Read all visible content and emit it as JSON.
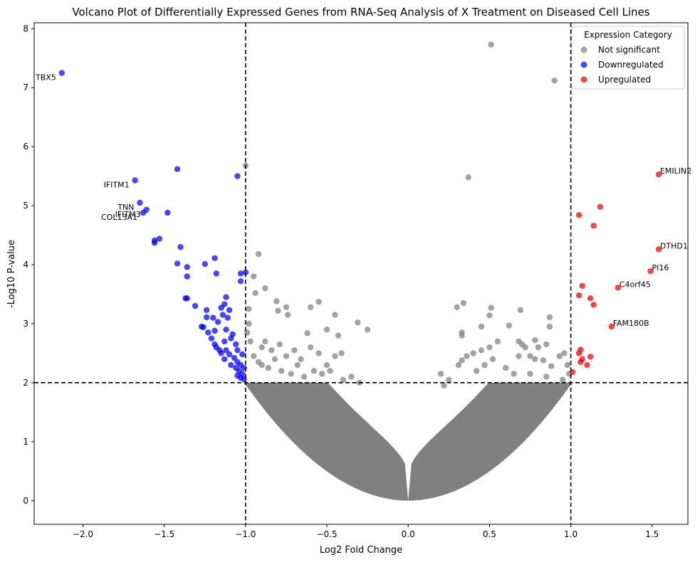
{
  "chart_data": {
    "type": "scatter",
    "title": "Volcano Plot of Differentially Expressed Genes from RNA-Seq Analysis of X Treatment on Diseased Cell Lines",
    "xlabel": "Log2 Fold Change",
    "ylabel": "-Log10 P-value",
    "xlim": [
      -2.3,
      1.72
    ],
    "ylim": [
      -0.4,
      8.1
    ],
    "xticks": [
      -2.0,
      -1.5,
      -1.0,
      -0.5,
      0.0,
      0.5,
      1.0,
      1.5
    ],
    "xtick_labels": [
      "−2.0",
      "−1.5",
      "−1.0",
      "−0.5",
      "0.0",
      "0.5",
      "1.0",
      "1.5"
    ],
    "yticks": [
      0,
      1,
      2,
      3,
      4,
      5,
      6,
      7,
      8
    ],
    "ytick_labels": [
      "0",
      "1",
      "2",
      "3",
      "4",
      "5",
      "6",
      "7",
      "8"
    ],
    "grid": false,
    "thresholds": {
      "log2fc": [
        -1.0,
        1.0
      ],
      "neg_log10_p": 2.0
    },
    "legend": {
      "title": "Expression Category",
      "placement": "top-right",
      "entries": [
        {
          "label": "Not significant",
          "color": "#808080"
        },
        {
          "label": "Downregulated",
          "color": "#0000ee"
        },
        {
          "label": "Upregulated",
          "color": "#ee0000"
        }
      ]
    },
    "series": [
      {
        "name": "Not significant",
        "color": "#808080",
        "points": [
          [
            0.51,
            7.73
          ],
          [
            0.9,
            7.12
          ],
          [
            -1.0,
            5.68
          ],
          [
            0.37,
            5.48
          ],
          [
            -0.92,
            4.18
          ],
          [
            -0.95,
            3.8
          ],
          [
            -0.88,
            3.6
          ],
          [
            -0.94,
            3.52
          ],
          [
            -0.81,
            3.38
          ],
          [
            -0.75,
            3.28
          ],
          [
            -0.8,
            3.22
          ],
          [
            -0.74,
            3.15
          ],
          [
            -0.98,
            3.25
          ],
          [
            -0.55,
            3.37
          ],
          [
            -0.6,
            3.28
          ],
          [
            -0.45,
            3.15
          ],
          [
            -0.31,
            3.02
          ],
          [
            -0.25,
            2.9
          ],
          [
            -0.5,
            2.9
          ],
          [
            -0.62,
            2.84
          ],
          [
            -0.43,
            2.8
          ],
          [
            -0.98,
            3.0
          ],
          [
            -0.99,
            2.85
          ],
          [
            -0.97,
            2.7
          ],
          [
            -0.9,
            2.6
          ],
          [
            -0.88,
            2.7
          ],
          [
            -0.84,
            2.55
          ],
          [
            -0.79,
            2.65
          ],
          [
            -0.75,
            2.45
          ],
          [
            -0.7,
            2.55
          ],
          [
            -0.66,
            2.4
          ],
          [
            -0.6,
            2.6
          ],
          [
            -0.55,
            2.5
          ],
          [
            -0.5,
            2.3
          ],
          [
            -0.45,
            2.45
          ],
          [
            -0.41,
            2.5
          ],
          [
            -0.48,
            2.2
          ],
          [
            -0.95,
            2.45
          ],
          [
            -0.92,
            2.35
          ],
          [
            -0.9,
            2.3
          ],
          [
            -0.86,
            2.25
          ],
          [
            -0.82,
            2.4
          ],
          [
            -0.78,
            2.2
          ],
          [
            -0.72,
            2.15
          ],
          [
            -0.68,
            2.3
          ],
          [
            -0.64,
            2.1
          ],
          [
            -0.58,
            2.2
          ],
          [
            -0.53,
            2.15
          ],
          [
            -0.4,
            2.05
          ],
          [
            -0.35,
            2.1
          ],
          [
            -0.3,
            2.0
          ],
          [
            0.3,
            3.28
          ],
          [
            0.34,
            3.35
          ],
          [
            0.51,
            3.27
          ],
          [
            0.5,
            3.14
          ],
          [
            0.69,
            3.23
          ],
          [
            0.87,
            3.11
          ],
          [
            0.62,
            2.97
          ],
          [
            0.87,
            2.95
          ],
          [
            0.33,
            2.85
          ],
          [
            0.45,
            2.95
          ],
          [
            0.33,
            2.8
          ],
          [
            0.55,
            2.7
          ],
          [
            0.68,
            2.7
          ],
          [
            0.78,
            2.72
          ],
          [
            0.7,
            2.65
          ],
          [
            0.8,
            2.6
          ],
          [
            0.85,
            2.65
          ],
          [
            0.72,
            2.6
          ],
          [
            0.75,
            2.45
          ],
          [
            0.68,
            2.45
          ],
          [
            0.78,
            2.4
          ],
          [
            0.83,
            2.38
          ],
          [
            0.88,
            2.28
          ],
          [
            0.93,
            2.45
          ],
          [
            0.96,
            2.5
          ],
          [
            0.98,
            2.3
          ],
          [
            0.5,
            2.6
          ],
          [
            0.45,
            2.55
          ],
          [
            0.4,
            2.5
          ],
          [
            0.36,
            2.45
          ],
          [
            0.33,
            2.38
          ],
          [
            0.31,
            2.3
          ],
          [
            0.52,
            2.4
          ],
          [
            0.47,
            2.3
          ],
          [
            0.42,
            2.2
          ],
          [
            0.6,
            2.25
          ],
          [
            0.65,
            2.15
          ],
          [
            0.75,
            2.15
          ],
          [
            0.85,
            2.1
          ],
          [
            0.95,
            2.05
          ],
          [
            0.99,
            2.15
          ],
          [
            0.2,
            2.15
          ],
          [
            0.25,
            2.05
          ],
          [
            0.22,
            1.95
          ]
        ]
      },
      {
        "name": "Downregulated",
        "color": "#0000ee",
        "points": [
          [
            -2.13,
            7.25
          ],
          [
            -1.42,
            5.62
          ],
          [
            -1.05,
            5.5
          ],
          [
            -1.68,
            5.43
          ],
          [
            -1.65,
            5.05
          ],
          [
            -1.61,
            4.93
          ],
          [
            -1.63,
            4.88
          ],
          [
            -1.48,
            4.88
          ],
          [
            -1.53,
            4.44
          ],
          [
            -1.56,
            4.41
          ],
          [
            -1.56,
            4.37
          ],
          [
            -1.4,
            4.3
          ],
          [
            -1.19,
            4.11
          ],
          [
            -1.42,
            4.02
          ],
          [
            -1.25,
            4.01
          ],
          [
            -1.36,
            3.96
          ],
          [
            -1.18,
            3.85
          ],
          [
            -1.36,
            3.8
          ],
          [
            -1.03,
            3.85
          ],
          [
            -1.0,
            3.87
          ],
          [
            -1.03,
            3.72
          ],
          [
            -1.12,
            3.45
          ],
          [
            -1.37,
            3.43
          ],
          [
            -1.36,
            3.43
          ],
          [
            -1.31,
            3.3
          ],
          [
            -1.13,
            3.33
          ],
          [
            -1.15,
            3.27
          ],
          [
            -1.1,
            3.23
          ],
          [
            -1.24,
            3.23
          ],
          [
            -1.24,
            3.11
          ],
          [
            -1.2,
            3.1
          ],
          [
            -1.14,
            3.15
          ],
          [
            -1.11,
            3.1
          ],
          [
            -1.17,
            3.03
          ],
          [
            -1.27,
            2.95
          ],
          [
            -1.26,
            2.94
          ],
          [
            -1.23,
            2.85
          ],
          [
            -1.19,
            2.88
          ],
          [
            -1.12,
            2.9
          ],
          [
            -1.13,
            2.7
          ],
          [
            -1.08,
            2.82
          ],
          [
            -1.09,
            2.75
          ],
          [
            -1.06,
            2.65
          ],
          [
            -1.12,
            2.55
          ],
          [
            -1.18,
            2.6
          ],
          [
            -1.15,
            2.5
          ],
          [
            -1.21,
            2.75
          ],
          [
            -1.19,
            2.65
          ],
          [
            -1.16,
            2.55
          ],
          [
            -1.1,
            2.48
          ],
          [
            -1.05,
            2.55
          ],
          [
            -1.02,
            2.48
          ],
          [
            -1.07,
            2.42
          ],
          [
            -1.13,
            2.4
          ],
          [
            -1.05,
            2.35
          ],
          [
            -1.09,
            2.3
          ],
          [
            -1.06,
            2.25
          ],
          [
            -1.03,
            2.3
          ],
          [
            -1.01,
            2.25
          ],
          [
            -1.04,
            2.2
          ],
          [
            -1.02,
            2.15
          ],
          [
            -1.05,
            2.12
          ],
          [
            -1.03,
            2.08
          ],
          [
            -1.01,
            2.06
          ]
        ]
      },
      {
        "name": "Upregulated",
        "color": "#ee0000",
        "points": [
          [
            1.54,
            5.53
          ],
          [
            1.18,
            4.98
          ],
          [
            1.05,
            4.84
          ],
          [
            1.14,
            4.66
          ],
          [
            1.54,
            4.26
          ],
          [
            1.49,
            3.89
          ],
          [
            1.07,
            3.64
          ],
          [
            1.29,
            3.61
          ],
          [
            1.05,
            3.48
          ],
          [
            1.12,
            3.43
          ],
          [
            1.14,
            3.32
          ],
          [
            1.25,
            2.95
          ],
          [
            1.06,
            2.56
          ],
          [
            1.05,
            2.5
          ],
          [
            1.12,
            2.44
          ],
          [
            1.07,
            2.4
          ],
          [
            1.06,
            2.35
          ],
          [
            1.1,
            2.3
          ],
          [
            1.01,
            2.18
          ]
        ]
      }
    ],
    "annotations": [
      {
        "text": "TBX5",
        "x": -2.13,
        "y": 7.25,
        "align": "right"
      },
      {
        "text": "IFITM1",
        "x": -1.68,
        "y": 5.43,
        "align": "right"
      },
      {
        "text": "TNN",
        "x": -1.65,
        "y": 5.05,
        "align": "right"
      },
      {
        "text": "IFITM3",
        "x": -1.61,
        "y": 4.93,
        "align": "right"
      },
      {
        "text": "COL13A1",
        "x": -1.63,
        "y": 4.88,
        "align": "right"
      },
      {
        "text": "EMILIN2",
        "x": 1.54,
        "y": 5.53,
        "align": "left"
      },
      {
        "text": "DTHD1",
        "x": 1.54,
        "y": 4.26,
        "align": "left"
      },
      {
        "text": "PI16",
        "x": 1.49,
        "y": 3.89,
        "align": "left"
      },
      {
        "text": "C4orf45",
        "x": 1.29,
        "y": 3.61,
        "align": "left"
      },
      {
        "text": "FAM180B",
        "x": 1.25,
        "y": 2.95,
        "align": "left"
      }
    ]
  }
}
